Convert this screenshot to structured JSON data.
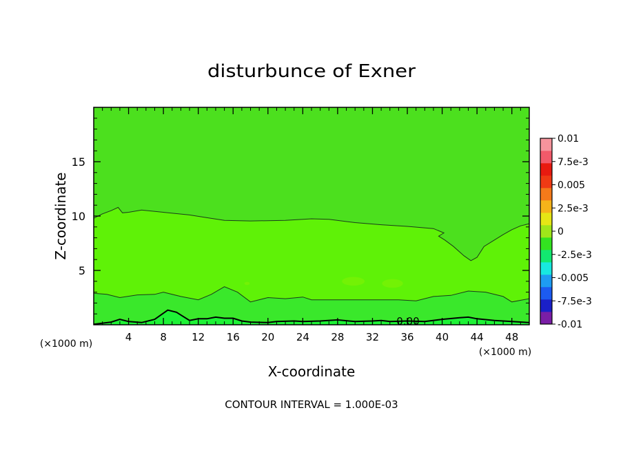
{
  "chart_data": {
    "type": "contour",
    "title": "disturbunce of Exner",
    "xlabel": "X-coordinate",
    "ylabel": "Z-coordinate",
    "x_unit": "(×1000 m)",
    "x_unit_right": "(×1000 m)",
    "footer": "CONTOUR INTERVAL = 1.000E-03",
    "xlim": [
      0,
      50
    ],
    "ylim": [
      0,
      20
    ],
    "x_ticks": [
      4,
      8,
      12,
      16,
      20,
      24,
      28,
      32,
      36,
      40,
      44,
      48
    ],
    "y_ticks": [
      5,
      10,
      15
    ],
    "contour_label": "0.00",
    "colorbar": {
      "levels": [
        -0.01,
        -0.0075,
        -0.005,
        -0.0025,
        0,
        0.0025,
        0.005,
        0.0075,
        0.01
      ],
      "labels": [
        "0.01",
        "7.5e-3",
        "0.005",
        "2.5e-3",
        "0",
        "-2.5e-3",
        "-0.005",
        "-7.5e-3",
        "-0.01"
      ],
      "colors": [
        "#7a1ea6",
        "#1a20c8",
        "#1c5bf0",
        "#1e9cf2",
        "#18e8e0",
        "#12e870",
        "#33e320",
        "#9fe61a",
        "#e6e615",
        "#f6b41a",
        "#f47a1a",
        "#f03a14",
        "#e81a10",
        "#f25a6a",
        "#f6949c"
      ]
    },
    "fills": {
      "upper": "#4ce01e",
      "middle": "#5ff207",
      "near_ground": "#3ae82b",
      "ground": "#1ef236"
    },
    "contours": [
      {
        "name": "upper",
        "points": [
          [
            0,
            9.8
          ],
          [
            1,
            10.2
          ],
          [
            2,
            10.5
          ],
          [
            2.8,
            10.8
          ],
          [
            3.3,
            10.3
          ],
          [
            4,
            10.35
          ],
          [
            5.5,
            10.55
          ],
          [
            8,
            10.35
          ],
          [
            11,
            10.1
          ],
          [
            13,
            9.85
          ],
          [
            15,
            9.6
          ],
          [
            18,
            9.55
          ],
          [
            22,
            9.6
          ],
          [
            25,
            9.75
          ],
          [
            27,
            9.7
          ],
          [
            30,
            9.4
          ],
          [
            33,
            9.2
          ],
          [
            36,
            9.05
          ],
          [
            39,
            8.85
          ],
          [
            40.2,
            8.45
          ],
          [
            39.6,
            8.15
          ],
          [
            40.3,
            7.8
          ],
          [
            41.3,
            7.2
          ],
          [
            42.5,
            6.35
          ],
          [
            43.3,
            5.9
          ],
          [
            44,
            6.2
          ],
          [
            44.8,
            7.2
          ],
          [
            46,
            7.8
          ],
          [
            47,
            8.3
          ],
          [
            48,
            8.75
          ],
          [
            49,
            9.1
          ],
          [
            50,
            9.3
          ]
        ]
      },
      {
        "name": "lower",
        "points": [
          [
            0,
            2.9
          ],
          [
            1.5,
            2.8
          ],
          [
            3,
            2.5
          ],
          [
            5,
            2.75
          ],
          [
            7,
            2.8
          ],
          [
            8,
            3.0
          ],
          [
            10,
            2.6
          ],
          [
            12,
            2.3
          ],
          [
            13.5,
            2.8
          ],
          [
            15,
            3.5
          ],
          [
            16.5,
            3.0
          ],
          [
            18,
            2.1
          ],
          [
            20,
            2.5
          ],
          [
            22,
            2.4
          ],
          [
            24,
            2.55
          ],
          [
            25,
            2.3
          ],
          [
            27,
            2.3
          ],
          [
            29,
            2.3
          ],
          [
            31,
            2.3
          ],
          [
            33,
            2.3
          ],
          [
            35,
            2.3
          ],
          [
            37,
            2.2
          ],
          [
            39,
            2.6
          ],
          [
            41,
            2.7
          ],
          [
            43,
            3.1
          ],
          [
            45,
            3.0
          ],
          [
            47,
            2.6
          ],
          [
            48,
            2.1
          ],
          [
            50,
            2.4
          ]
        ]
      },
      {
        "name": "zero",
        "points": [
          [
            0,
            0.05
          ],
          [
            2,
            0.25
          ],
          [
            3,
            0.5
          ],
          [
            4,
            0.3
          ],
          [
            5.5,
            0.2
          ],
          [
            7,
            0.5
          ],
          [
            8.5,
            1.35
          ],
          [
            9.5,
            1.15
          ],
          [
            10,
            0.9
          ],
          [
            11,
            0.4
          ],
          [
            12,
            0.55
          ],
          [
            13,
            0.55
          ],
          [
            14,
            0.7
          ],
          [
            15,
            0.6
          ],
          [
            16,
            0.6
          ],
          [
            17,
            0.35
          ],
          [
            18,
            0.25
          ],
          [
            20,
            0.2
          ],
          [
            21,
            0.3
          ],
          [
            23,
            0.35
          ],
          [
            24,
            0.3
          ],
          [
            26,
            0.35
          ],
          [
            28,
            0.45
          ],
          [
            30,
            0.3
          ],
          [
            32,
            0.35
          ],
          [
            33,
            0.4
          ],
          [
            34,
            0.3
          ],
          [
            36,
            0.35
          ],
          [
            38,
            0.3
          ],
          [
            40,
            0.5
          ],
          [
            42,
            0.65
          ],
          [
            43,
            0.7
          ],
          [
            44,
            0.55
          ],
          [
            46,
            0.4
          ],
          [
            48,
            0.3
          ],
          [
            50,
            0.2
          ]
        ]
      }
    ],
    "blobs": [
      {
        "x": 29.8,
        "y": 4.0,
        "rx": 1.3,
        "ry": 0.4,
        "color": "#73f205"
      },
      {
        "x": 34.3,
        "y": 3.8,
        "rx": 1.2,
        "ry": 0.4,
        "color": "#73f205"
      },
      {
        "x": 17.6,
        "y": 3.8,
        "rx": 0.3,
        "ry": 0.15,
        "color": "#73f205"
      }
    ]
  }
}
